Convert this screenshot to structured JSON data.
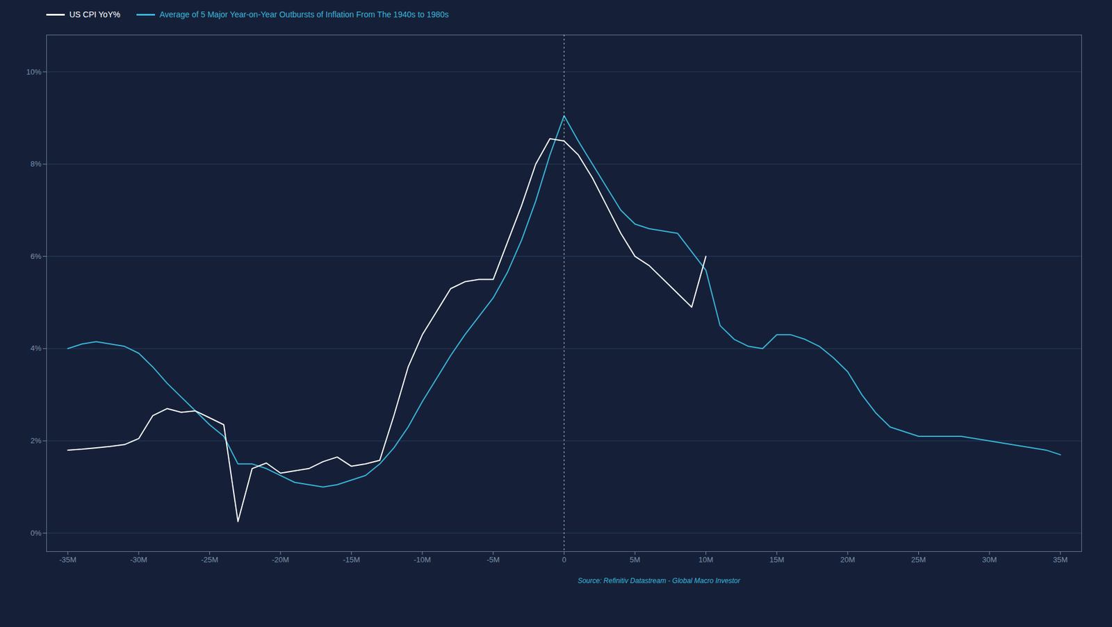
{
  "chart_data": {
    "type": "line",
    "legend": "upper left",
    "grid": "y",
    "annotations": [
      "Source: Refinitiv Datastream - Global Macro Investor"
    ],
    "x": [
      -35,
      -34,
      -33,
      -32,
      -31,
      -30,
      -29,
      -28,
      -27,
      -26,
      -25,
      -24,
      -23,
      -22,
      -21,
      -20,
      -19,
      -18,
      -17,
      -16,
      -15,
      -14,
      -13,
      -12,
      -11,
      -10,
      -9,
      -8,
      -7,
      -6,
      -5,
      -4,
      -3,
      -2,
      -1,
      0,
      1,
      2,
      3,
      4,
      5,
      6,
      7,
      8,
      9,
      10,
      11,
      12,
      13,
      14,
      15,
      16,
      17,
      18,
      19,
      20,
      21,
      22,
      23,
      24,
      25,
      26,
      27,
      28,
      29,
      30,
      31,
      32,
      33,
      34,
      35
    ],
    "series": [
      {
        "name": "US CPI YoY%",
        "color": "#ffffff",
        "values": [
          1.8,
          1.82,
          1.85,
          1.88,
          1.92,
          2.05,
          2.55,
          2.7,
          2.62,
          2.65,
          2.5,
          2.35,
          0.25,
          1.4,
          1.52,
          1.3,
          1.35,
          1.4,
          1.55,
          1.65,
          1.45,
          1.5,
          1.58,
          2.55,
          3.6,
          4.3,
          4.8,
          5.3,
          5.45,
          5.5,
          5.5,
          6.3,
          7.1,
          8.0,
          8.55,
          8.5,
          8.2,
          7.7,
          7.1,
          6.5,
          6.0,
          5.8,
          5.5,
          5.2,
          4.9,
          6.0,
          null,
          null,
          null,
          null,
          null,
          null,
          null,
          null,
          null,
          null,
          null,
          null,
          null,
          null,
          null,
          null,
          null,
          null,
          null,
          null,
          null,
          null,
          null,
          null,
          null
        ]
      },
      {
        "name": "Average of 5 Major Year-on-Year Outbursts of Inflation From The 1940s to 1980s",
        "color": "#3ab5d8",
        "values": [
          4.0,
          4.1,
          4.15,
          4.1,
          4.05,
          3.9,
          3.6,
          3.25,
          2.95,
          2.65,
          2.35,
          2.1,
          1.5,
          1.5,
          1.4,
          1.25,
          1.1,
          1.05,
          1.0,
          1.05,
          1.15,
          1.25,
          1.5,
          1.85,
          2.3,
          2.85,
          3.35,
          3.85,
          4.3,
          4.7,
          5.1,
          5.65,
          6.35,
          7.2,
          8.2,
          9.05,
          8.5,
          8.0,
          7.5,
          7.0,
          6.7,
          6.6,
          6.55,
          6.5,
          6.1,
          5.7,
          4.5,
          4.2,
          4.05,
          4.0,
          4.3,
          4.3,
          4.2,
          4.05,
          3.8,
          3.5,
          3.0,
          2.6,
          2.3,
          2.2,
          2.1,
          2.1,
          2.1,
          2.1,
          2.05,
          2.0,
          1.95,
          1.9,
          1.85,
          1.8,
          1.7
        ]
      }
    ],
    "vline": 0,
    "xlim": [
      -36.5,
      36.5
    ],
    "xticks": [
      {
        "value": -35,
        "label": "-35M"
      },
      {
        "value": -30,
        "label": "-30M"
      },
      {
        "value": -25,
        "label": "-25M"
      },
      {
        "value": -20,
        "label": "-20M"
      },
      {
        "value": -15,
        "label": "-15M"
      },
      {
        "value": -10,
        "label": "-10M"
      },
      {
        "value": -5,
        "label": "-5M"
      },
      0,
      {
        "value": 5,
        "label": "5M"
      },
      {
        "value": 10,
        "label": "10M"
      },
      {
        "value": 15,
        "label": "15M"
      },
      {
        "value": 20,
        "label": "20M"
      },
      {
        "value": 25,
        "label": "25M"
      },
      {
        "value": 30,
        "label": "30M"
      },
      {
        "value": 35,
        "label": "35M"
      }
    ],
    "ylim": [
      -0.4,
      10.8
    ],
    "yticks": [
      {
        "value": 0,
        "label": "0%"
      },
      {
        "value": 2,
        "label": "2%"
      },
      {
        "value": 4,
        "label": "4%"
      },
      {
        "value": 6,
        "label": "6%"
      },
      {
        "value": 8,
        "label": "8%"
      },
      {
        "value": 10,
        "label": "10%"
      }
    ]
  }
}
